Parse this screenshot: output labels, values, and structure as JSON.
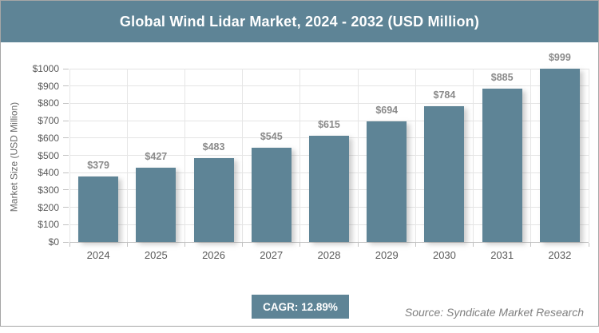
{
  "header": {
    "title": "Global Wind Lidar Market, 2024 - 2032 (USD Million)",
    "background": "#5e8496",
    "text_color": "#ffffff"
  },
  "chart_data": {
    "type": "bar",
    "title": "Global Wind Lidar Market, 2024 - 2032 (USD Million)",
    "categories": [
      "2024",
      "2025",
      "2026",
      "2027",
      "2028",
      "2029",
      "2030",
      "2031",
      "2032"
    ],
    "values": [
      379,
      427,
      483,
      545,
      615,
      694,
      784,
      885,
      999
    ],
    "value_labels": [
      "$379",
      "$427",
      "$483",
      "$545",
      "$615",
      "$694",
      "$784",
      "$885",
      "$999"
    ],
    "xlabel": "",
    "ylabel": "Market Size (USD Million)",
    "ylim": [
      0,
      1000
    ],
    "ytick_step": 100,
    "ytick_labels": [
      "$0",
      "$100",
      "$200",
      "$300",
      "$400",
      "$500",
      "$600",
      "$700",
      "$800",
      "$900",
      "$1000"
    ],
    "grid": true,
    "legend": false,
    "bar_color": "#5e8496",
    "value_label_color": "#8a8a8a",
    "tick_label_color": "#595959"
  },
  "footer": {
    "cagr_label": "CAGR: 12.89%",
    "source": "Source: Syndicate Market Research"
  }
}
